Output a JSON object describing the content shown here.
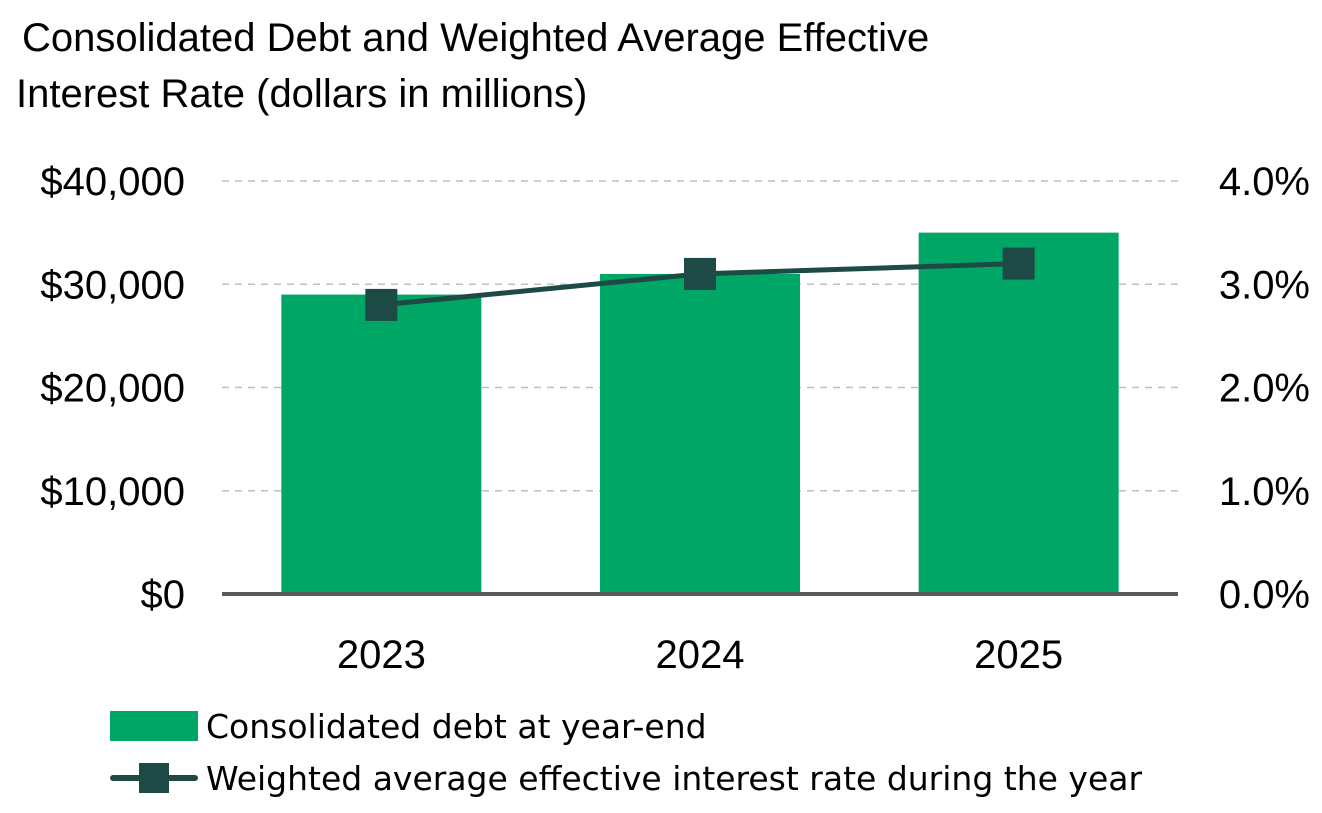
{
  "chart_data": {
    "type": "bar",
    "title_line1": "Consolidated Debt and Weighted Average Effective",
    "title_line2": "Interest Rate (dollars in millions)",
    "categories": [
      "2023",
      "2024",
      "2025"
    ],
    "series": [
      {
        "name": "Consolidated debt at year-end",
        "type": "bar",
        "axis": "left",
        "values": [
          29000,
          31000,
          35000
        ],
        "color": "#00A665"
      },
      {
        "name": "Weighted average effective interest rate during the year",
        "type": "line",
        "axis": "right",
        "values": [
          2.8,
          3.1,
          3.2
        ],
        "color": "#1E4A46"
      }
    ],
    "y_left": {
      "ylim": [
        0,
        40000
      ],
      "ticks": [
        0,
        10000,
        20000,
        30000,
        40000
      ],
      "tick_labels": [
        "$0",
        "$10,000",
        "$20,000",
        "$30,000",
        "$40,000"
      ]
    },
    "y_right": {
      "ylim": [
        0,
        4.0
      ],
      "ticks": [
        0,
        1,
        2,
        3,
        4
      ],
      "tick_labels": [
        "0.0%",
        "1.0%",
        "2.0%",
        "3.0%",
        "4.0%"
      ]
    },
    "grid": true,
    "grid_style": "dashed",
    "legend_placement": "bottom-left"
  }
}
